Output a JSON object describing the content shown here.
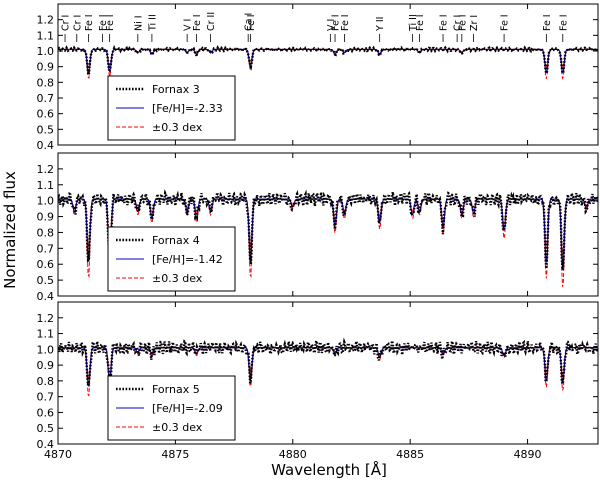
{
  "chart_data": {
    "type": "line",
    "xlabel": "Wavelength [Å]",
    "ylabel": "Normalized flux",
    "xlim": [
      4870,
      4893
    ],
    "x_ticks": [
      4870,
      4875,
      4880,
      4885,
      4890
    ],
    "y_ticks": [
      0.4,
      0.5,
      0.6,
      0.7,
      0.8,
      0.9,
      1.0,
      1.1,
      1.2
    ],
    "grid": false,
    "legend_position": "lower-left",
    "colors": {
      "observed": "#000000",
      "model": "#0000cc",
      "offset": "#ff0000"
    },
    "line_ids": [
      {
        "x": 4870.3,
        "label": "Cr I"
      },
      {
        "x": 4870.8,
        "label": "Cr I"
      },
      {
        "x": 4871.3,
        "label": "Fe I"
      },
      {
        "x": 4871.9,
        "label": "Fe I"
      },
      {
        "x": 4872.2,
        "label": "Fe I"
      },
      {
        "x": 4873.4,
        "label": "Ni I"
      },
      {
        "x": 4874.0,
        "label": "Ti II"
      },
      {
        "x": 4875.5,
        "label": "V I"
      },
      {
        "x": 4875.9,
        "label": "Fe I"
      },
      {
        "x": 4876.5,
        "label": "Cr II"
      },
      {
        "x": 4878.1,
        "label": "Ca I"
      },
      {
        "x": 4878.2,
        "label": "Fe I"
      },
      {
        "x": 4881.6,
        "label": "V I"
      },
      {
        "x": 4881.8,
        "label": "Fe I"
      },
      {
        "x": 4882.2,
        "label": "Fe I"
      },
      {
        "x": 4883.7,
        "label": "Y II"
      },
      {
        "x": 4885.1,
        "label": "Ti II"
      },
      {
        "x": 4885.4,
        "label": "Fe I"
      },
      {
        "x": 4886.4,
        "label": "Fe I"
      },
      {
        "x": 4887.0,
        "label": "Cr I"
      },
      {
        "x": 4887.2,
        "label": "Fe I"
      },
      {
        "x": 4887.7,
        "label": "Zr I"
      },
      {
        "x": 4889.0,
        "label": "Fe I"
      },
      {
        "x": 4890.8,
        "label": "Fe I"
      },
      {
        "x": 4891.5,
        "label": "Fe I"
      }
    ],
    "panels": [
      {
        "name": "Fornax 3",
        "ylim": [
          0.4,
          1.3
        ],
        "legend": [
          {
            "label": "Fornax 3",
            "style": "observed"
          },
          {
            "label": "[Fe/H]=-2.33",
            "style": "model"
          },
          {
            "label": "±0.3 dex",
            "style": "offset"
          }
        ],
        "noise": 0.006,
        "lines": [
          {
            "x": 4871.3,
            "depth": 0.15
          },
          {
            "x": 4872.2,
            "depth": 0.14
          },
          {
            "x": 4873.4,
            "depth": 0.02
          },
          {
            "x": 4874.0,
            "depth": 0.03
          },
          {
            "x": 4875.5,
            "depth": 0.02
          },
          {
            "x": 4875.9,
            "depth": 0.03
          },
          {
            "x": 4876.5,
            "depth": 0.02
          },
          {
            "x": 4878.2,
            "depth": 0.11
          },
          {
            "x": 4881.8,
            "depth": 0.03
          },
          {
            "x": 4882.2,
            "depth": 0.02
          },
          {
            "x": 4883.7,
            "depth": 0.03
          },
          {
            "x": 4885.4,
            "depth": 0.02
          },
          {
            "x": 4887.2,
            "depth": 0.02
          },
          {
            "x": 4890.8,
            "depth": 0.15
          },
          {
            "x": 4891.5,
            "depth": 0.15
          }
        ]
      },
      {
        "name": "Fornax 4",
        "ylim": [
          0.4,
          1.3
        ],
        "legend": [
          {
            "label": "Fornax 4",
            "style": "observed"
          },
          {
            "label": "[Fe/H]=-1.42",
            "style": "model"
          },
          {
            "label": "±0.3 dex",
            "style": "offset"
          }
        ],
        "noise": 0.025,
        "lines": [
          {
            "x": 4870.7,
            "depth": 0.08
          },
          {
            "x": 4871.3,
            "depth": 0.4
          },
          {
            "x": 4872.2,
            "depth": 0.38
          },
          {
            "x": 4873.4,
            "depth": 0.08
          },
          {
            "x": 4874.0,
            "depth": 0.12
          },
          {
            "x": 4875.5,
            "depth": 0.08
          },
          {
            "x": 4875.9,
            "depth": 0.12
          },
          {
            "x": 4876.5,
            "depth": 0.08
          },
          {
            "x": 4878.2,
            "depth": 0.4
          },
          {
            "x": 4880.0,
            "depth": 0.05
          },
          {
            "x": 4881.8,
            "depth": 0.17
          },
          {
            "x": 4882.2,
            "depth": 0.1
          },
          {
            "x": 4883.7,
            "depth": 0.15
          },
          {
            "x": 4885.1,
            "depth": 0.1
          },
          {
            "x": 4885.4,
            "depth": 0.08
          },
          {
            "x": 4886.4,
            "depth": 0.18
          },
          {
            "x": 4887.2,
            "depth": 0.1
          },
          {
            "x": 4887.7,
            "depth": 0.09
          },
          {
            "x": 4889.0,
            "depth": 0.2
          },
          {
            "x": 4890.8,
            "depth": 0.4
          },
          {
            "x": 4891.5,
            "depth": 0.45
          },
          {
            "x": 4892.5,
            "depth": 0.06
          }
        ]
      },
      {
        "name": "Fornax 5",
        "ylim": [
          0.4,
          1.3
        ],
        "legend": [
          {
            "label": "Fornax 5",
            "style": "observed"
          },
          {
            "label": "[Fe/H]=-2.09",
            "style": "model"
          },
          {
            "label": "±0.3 dex",
            "style": "offset"
          }
        ],
        "noise": 0.025,
        "lines": [
          {
            "x": 4871.3,
            "depth": 0.25
          },
          {
            "x": 4872.2,
            "depth": 0.22
          },
          {
            "x": 4873.4,
            "depth": 0.03
          },
          {
            "x": 4874.0,
            "depth": 0.04
          },
          {
            "x": 4875.9,
            "depth": 0.04
          },
          {
            "x": 4878.2,
            "depth": 0.2
          },
          {
            "x": 4881.8,
            "depth": 0.04
          },
          {
            "x": 4883.7,
            "depth": 0.06
          },
          {
            "x": 4886.4,
            "depth": 0.04
          },
          {
            "x": 4889.0,
            "depth": 0.05
          },
          {
            "x": 4890.8,
            "depth": 0.2
          },
          {
            "x": 4891.5,
            "depth": 0.22
          }
        ]
      }
    ]
  }
}
